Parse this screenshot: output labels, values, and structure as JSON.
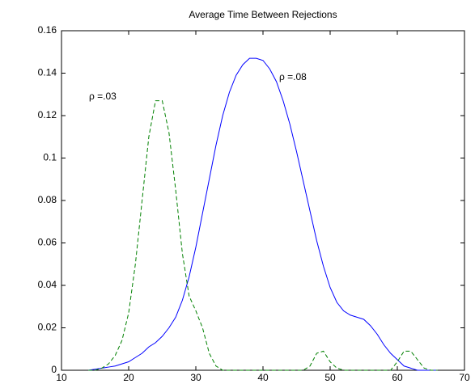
{
  "chart_data": {
    "type": "line",
    "title": "Average Time Between Rejections",
    "x": [
      14,
      15,
      16,
      17,
      18,
      19,
      20,
      21,
      22,
      23,
      24,
      25,
      26,
      27,
      28,
      29,
      30,
      31,
      32,
      33,
      34,
      35,
      36,
      37,
      38,
      39,
      40,
      41,
      42,
      43,
      44,
      45,
      46,
      47,
      48,
      49,
      50,
      51,
      52,
      53,
      54,
      55,
      56,
      57,
      58,
      59,
      60,
      61,
      62,
      63,
      64,
      65,
      66
    ],
    "series": [
      {
        "color": "#0000ff",
        "style": "solid",
        "values": [
          0,
          0.0005,
          0.001,
          0.0015,
          0.002,
          0.003,
          0.004,
          0.006,
          0.008,
          0.011,
          0.013,
          0.016,
          0.02,
          0.025,
          0.033,
          0.044,
          0.058,
          0.074,
          0.09,
          0.106,
          0.12,
          0.131,
          0.139,
          0.144,
          0.147,
          0.147,
          0.146,
          0.142,
          0.136,
          0.127,
          0.116,
          0.103,
          0.089,
          0.075,
          0.061,
          0.049,
          0.039,
          0.032,
          0.028,
          0.026,
          0.025,
          0.024,
          0.021,
          0.017,
          0.012,
          0.008,
          0.005,
          0.002,
          0.001,
          0,
          0,
          0,
          0
        ]
      },
      {
        "color": "#008000",
        "style": "dashed",
        "values": [
          0,
          0,
          0.001,
          0.003,
          0.007,
          0.014,
          0.027,
          0.05,
          0.08,
          0.11,
          0.127,
          0.127,
          0.112,
          0.085,
          0.055,
          0.035,
          0.028,
          0.02,
          0.008,
          0.002,
          0,
          0,
          0,
          0,
          0,
          0,
          0,
          0,
          0,
          0,
          0,
          0,
          0,
          0.002,
          0.008,
          0.009,
          0.004,
          0.001,
          0,
          0,
          0,
          0,
          0,
          0,
          0,
          0,
          0.004,
          0.009,
          0.009,
          0.005,
          0.001,
          0,
          0
        ]
      }
    ],
    "annotations": [
      "ρ =.08",
      "ρ =.03"
    ],
    "xlim": [
      10,
      70
    ],
    "xticks": [
      10,
      20,
      30,
      40,
      50,
      60,
      70
    ],
    "ylim": [
      0,
      0.16
    ],
    "yticks": [
      0,
      0.02,
      0.04,
      0.06,
      0.08,
      0.1,
      0.12,
      0.14,
      0.16
    ],
    "grid": false
  }
}
